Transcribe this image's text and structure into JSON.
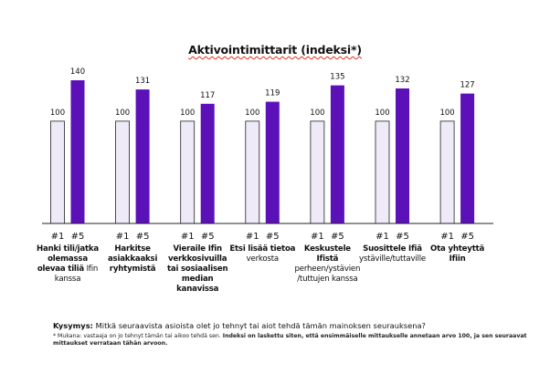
{
  "title": "Aktivointimittarit (indeksi*)",
  "chart_data": {
    "type": "bar",
    "title": "Aktivointimittarit (indeksi*)",
    "series_labels": [
      "#1",
      "#5"
    ],
    "colors": {
      "baseline": "#eeeaf8",
      "baseline_stroke": "#222222",
      "followup": "#5b10b8",
      "axis": "#222222"
    },
    "categories": [
      {
        "bold": "Hanki tili/jatka olemassa olevaa tiliä",
        "normal": "Ifin kanssa",
        "values": [
          100,
          140
        ]
      },
      {
        "bold": "Harkitse asiakkaaksi ryhtymistä",
        "normal": "",
        "values": [
          100,
          131
        ]
      },
      {
        "bold": "Vieraile Ifin verkkosivuilla tai sosiaalisen median kanavissa",
        "normal": "",
        "values": [
          100,
          117
        ]
      },
      {
        "bold": "Etsi lisää tietoa",
        "normal": "verkosta",
        "values": [
          100,
          119
        ]
      },
      {
        "bold": "Keskustele Ifistä",
        "normal": "perheen/ystävien /tuttujen kanssa",
        "values": [
          100,
          135
        ]
      },
      {
        "bold": "Suosittele Ifiä",
        "normal": "ystäville/tuttaville",
        "values": [
          100,
          132
        ]
      },
      {
        "bold": "Ota yhteyttä Ifiin",
        "normal": "",
        "values": [
          100,
          127
        ]
      }
    ],
    "ylim": [
      0,
      140
    ],
    "grid": false,
    "legend": "none"
  },
  "question_label": "Kysymys:",
  "question": "Mitkä seuraavista asioista olet jo tehnyt tai aiot tehdä tämän mainoksen seurauksena?",
  "note_regular": "* Mukana: vastaaja on jo tehnyt tämän tai aikoo tehdä sen.",
  "note_bold": "Indeksi on laskettu siten, että ensimmäiselle mittaukselle annetaan arvo 100, ja sen seuraavat mittaukset verrataan tähän arvoon."
}
